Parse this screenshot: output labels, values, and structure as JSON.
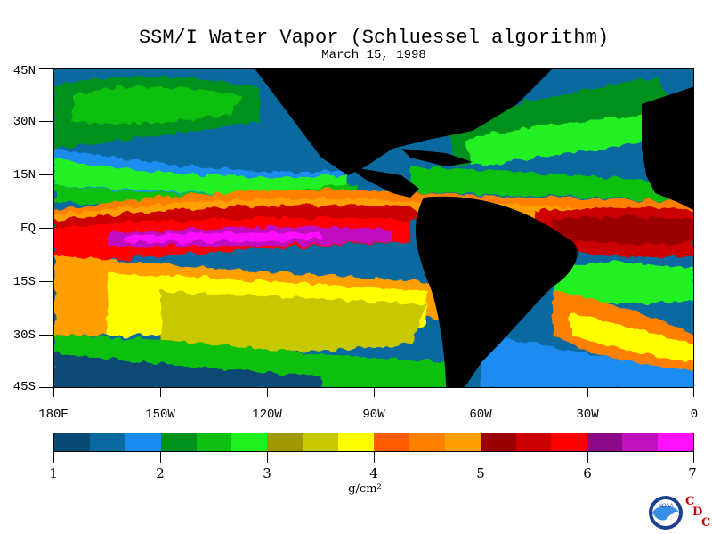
{
  "title": "SSM/I Water Vapor (Schluessel algorithm)",
  "subtitle": "March 15, 1998",
  "lat_labels": [
    "45N",
    "30N",
    "15N",
    "EQ",
    "15S",
    "30S",
    "45S"
  ],
  "lon_labels": [
    "180E",
    "150W",
    "120W",
    "90W",
    "60W",
    "30W",
    "0"
  ],
  "colorbar": {
    "colors": [
      "#0a4a72",
      "#0a6aa0",
      "#1a8cf0",
      "#00901c",
      "#10c010",
      "#20f020",
      "#a09a00",
      "#c8c800",
      "#ffff00",
      "#ff5a00",
      "#ff8000",
      "#ffa000",
      "#9a0000",
      "#cc0000",
      "#ff0000",
      "#8a0a8a",
      "#c010c0",
      "#ff10ff"
    ],
    "labels": [
      "1",
      "2",
      "3",
      "4",
      "5",
      "6",
      "7"
    ],
    "unit": "g/cm²"
  },
  "logo": {
    "name": "noaa-logo",
    "text": "NOAA"
  },
  "cdc": {
    "c1": "C",
    "d": "D",
    "c2": "C"
  },
  "land_color": "#000000"
}
